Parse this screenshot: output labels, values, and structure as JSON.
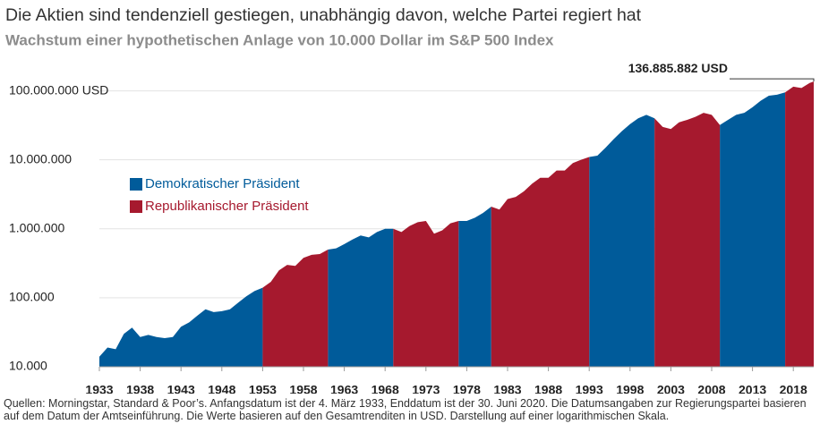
{
  "chart_data": {
    "type": "area",
    "title": "Die Aktien sind tendenziell gestiegen, unabhängig davon, welche Partei regiert hat",
    "subtitle": "Wachstum einer hypothetischen Anlage von 10.000 Dollar im S&P 500 Index",
    "source": "Quellen: Morningstar, Standard & Poor’s. Anfangsdatum ist der 4. März 1933, Enddatum ist der 30. Juni 2020. Die Datumsangaben zur Regierungspartei basieren auf dem Datum der Amtseinführung. Die Werte basieren auf den Gesamtrenditen in USD. Darstellung auf einer logarithmischen Skala.",
    "annotation": {
      "label": "136.885.882 USD",
      "value": 136885882
    },
    "log_scale": true,
    "grid": true,
    "xlim": [
      1933,
      2020.5
    ],
    "xticks": [
      1933,
      1938,
      1943,
      1948,
      1953,
      1958,
      1963,
      1968,
      1973,
      1978,
      1983,
      1988,
      1993,
      1998,
      2003,
      2008,
      2013,
      2018
    ],
    "ylim": [
      10000,
      150000000
    ],
    "yticks": [
      {
        "value": 10000,
        "label": "10.000"
      },
      {
        "value": 100000,
        "label": "100.000"
      },
      {
        "value": 1000000,
        "label": "1.000.000"
      },
      {
        "value": 10000000,
        "label": "10.000.000"
      },
      {
        "value": 100000000,
        "label": "100.000.000 USD"
      }
    ],
    "x": [
      1933,
      1934,
      1935,
      1936,
      1937,
      1938,
      1939,
      1940,
      1941,
      1942,
      1943,
      1944,
      1945,
      1946,
      1947,
      1948,
      1949,
      1950,
      1951,
      1952,
      1953,
      1954,
      1955,
      1956,
      1957,
      1958,
      1959,
      1960,
      1961,
      1962,
      1963,
      1964,
      1965,
      1966,
      1967,
      1968,
      1969,
      1970,
      1971,
      1972,
      1973,
      1974,
      1975,
      1976,
      1977,
      1978,
      1979,
      1980,
      1981,
      1982,
      1983,
      1984,
      1985,
      1986,
      1987,
      1988,
      1989,
      1990,
      1991,
      1992,
      1993,
      1994,
      1995,
      1996,
      1997,
      1998,
      1999,
      2000,
      2001,
      2002,
      2003,
      2004,
      2005,
      2006,
      2007,
      2008,
      2009,
      2010,
      2011,
      2012,
      2013,
      2014,
      2015,
      2016,
      2017,
      2018,
      2019,
      2020,
      2020.5
    ],
    "series": [
      {
        "name": "Demokratischer Präsident",
        "color": "#005b9a",
        "values": [
          14000,
          19000,
          18000,
          30000,
          37000,
          27000,
          29000,
          27000,
          26000,
          27000,
          38000,
          44000,
          55000,
          68000,
          62000,
          64000,
          68000,
          85000,
          105000,
          125000,
          140000,
          null,
          null,
          null,
          null,
          null,
          null,
          null,
          500000,
          520000,
          600000,
          700000,
          800000,
          750000,
          900000,
          1000000,
          1000000,
          null,
          null,
          null,
          null,
          null,
          null,
          null,
          1300000,
          1300000,
          1450000,
          1700000,
          2100000,
          null,
          null,
          null,
          null,
          null,
          null,
          null,
          null,
          null,
          null,
          null,
          11000000,
          11500000,
          15000000,
          20000000,
          26000000,
          33000000,
          40000000,
          45000000,
          40000000,
          null,
          null,
          null,
          null,
          null,
          null,
          null,
          32000000,
          38000000,
          45000000,
          48000000,
          58000000,
          72000000,
          85000000,
          88000000,
          95000000,
          null,
          null,
          null,
          null
        ]
      },
      {
        "name": "Republikanischer Präsident",
        "color": "#a6192e",
        "values": [
          null,
          null,
          null,
          null,
          null,
          null,
          null,
          null,
          null,
          null,
          null,
          null,
          null,
          null,
          null,
          null,
          null,
          null,
          null,
          null,
          140000,
          170000,
          250000,
          300000,
          290000,
          380000,
          420000,
          430000,
          500000,
          null,
          null,
          null,
          null,
          null,
          null,
          null,
          1000000,
          900000,
          1100000,
          1250000,
          1300000,
          850000,
          950000,
          1200000,
          1300000,
          null,
          null,
          null,
          2100000,
          1900000,
          2700000,
          2900000,
          3500000,
          4500000,
          5500000,
          5500000,
          7000000,
          7000000,
          9000000,
          10000000,
          11000000,
          null,
          null,
          null,
          null,
          null,
          null,
          null,
          40000000,
          30000000,
          28000000,
          35000000,
          38000000,
          42000000,
          48000000,
          45000000,
          32000000,
          null,
          null,
          null,
          null,
          null,
          null,
          null,
          95000000,
          115000000,
          110000000,
          130000000,
          136885882
        ]
      }
    ]
  }
}
